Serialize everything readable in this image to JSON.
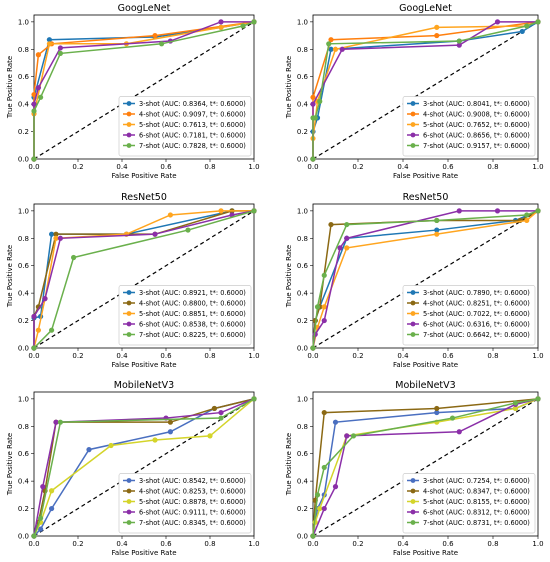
{
  "chart_data": [
    {
      "type": "line",
      "title": "GoogLeNet",
      "xlabel": "False Positive Rate",
      "ylabel": "True Positive Rate",
      "xlim": [
        0,
        1
      ],
      "ylim": [
        0,
        1.05
      ],
      "ticks": [
        "0.0",
        "0.2",
        "0.4",
        "0.6",
        "0.8",
        "1.0"
      ],
      "legend_position": "lower-right",
      "diagonal": true,
      "series": [
        {
          "name": "3-shot (AUC: 0.8364, t*: 0.6000)",
          "color": "#1f77b4",
          "x": [
            0,
            0,
            0.07,
            0.55,
            0.85,
            1.0
          ],
          "y": [
            0,
            0.45,
            0.87,
            0.89,
            0.96,
            1.0
          ]
        },
        {
          "name": "4-shot (AUC: 0.9097, t*: 0.6000)",
          "color": "#ff7f0e",
          "x": [
            0,
            0,
            0.02,
            0.08,
            0.55,
            1.0
          ],
          "y": [
            0,
            0.47,
            0.76,
            0.84,
            0.9,
            1.0
          ]
        },
        {
          "name": "5-shot (AUC: 0.7613, t*: 0.6000)",
          "color": "#ffa51f",
          "x": [
            0,
            0,
            0.07,
            0.42,
            0.85,
            1.0
          ],
          "y": [
            0,
            0.33,
            0.84,
            0.84,
            0.96,
            1.0
          ]
        },
        {
          "name": "6-shot (AUC: 0.7181, t*: 0.6000)",
          "color": "#8b2fa8",
          "x": [
            0,
            0,
            0.02,
            0.12,
            0.62,
            0.85,
            1.0
          ],
          "y": [
            0,
            0.4,
            0.52,
            0.81,
            0.86,
            1.0,
            1.0
          ]
        },
        {
          "name": "7-shot (AUC: 0.7828, t*: 0.6000)",
          "color": "#6ab04c",
          "x": [
            0,
            0,
            0.03,
            0.12,
            0.58,
            0.95,
            1.0
          ],
          "y": [
            0,
            0.35,
            0.45,
            0.77,
            0.84,
            0.97,
            1.0
          ]
        }
      ]
    },
    {
      "type": "line",
      "title": "GoogLeNet",
      "xlabel": "False Positive Rate",
      "ylabel": "True Positive Rate",
      "xlim": [
        0,
        1
      ],
      "ylim": [
        0,
        1.05
      ],
      "ticks": [
        "0.0",
        "0.2",
        "0.4",
        "0.6",
        "0.8",
        "1.0"
      ],
      "legend_position": "lower-right",
      "diagonal": true,
      "series": [
        {
          "name": "3-shot (AUC: 0.8041, t*: 0.6000)",
          "color": "#1f77b4",
          "x": [
            0,
            0,
            0.02,
            0.08,
            0.65,
            0.93,
            1.0
          ],
          "y": [
            0,
            0.2,
            0.3,
            0.8,
            0.86,
            0.93,
            1.0
          ]
        },
        {
          "name": "4-shot (AUC: 0.9008, t*: 0.6000)",
          "color": "#ff7f0e",
          "x": [
            0,
            0,
            0.08,
            0.55,
            1.0
          ],
          "y": [
            0,
            0.45,
            0.87,
            0.9,
            1.0
          ]
        },
        {
          "name": "5-shot (AUC: 0.7652, t*: 0.6000)",
          "color": "#ffa51f",
          "x": [
            0,
            0,
            0.02,
            0.1,
            0.55,
            0.95,
            1.0
          ],
          "y": [
            0,
            0.15,
            0.42,
            0.8,
            0.96,
            0.97,
            1.0
          ]
        },
        {
          "name": "6-shot (AUC: 0.8656, t*: 0.6000)",
          "color": "#8b2fa8",
          "x": [
            0,
            0,
            0.13,
            0.65,
            0.82,
            1.0
          ],
          "y": [
            0,
            0.4,
            0.8,
            0.83,
            1.0,
            1.0
          ]
        },
        {
          "name": "7-shot (AUC: 0.9157, t*: 0.6000)",
          "color": "#6ab04c",
          "x": [
            0,
            0,
            0.01,
            0.03,
            0.07,
            0.65,
            0.95,
            1.0
          ],
          "y": [
            0,
            0.3,
            0.3,
            0.42,
            0.84,
            0.86,
            0.97,
            1.0
          ]
        }
      ]
    },
    {
      "type": "line",
      "title": "ResNet50",
      "xlabel": "False Positive Rate",
      "ylabel": "True Positive Rate",
      "xlim": [
        0,
        1
      ],
      "ylim": [
        0,
        1.05
      ],
      "ticks": [
        "0.0",
        "0.2",
        "0.4",
        "0.6",
        "0.8",
        "1.0"
      ],
      "legend_position": "lower-right",
      "diagonal": true,
      "series": [
        {
          "name": "3-shot (AUC: 0.8921, t*: 0.6000)",
          "color": "#1f77b4",
          "x": [
            0,
            0,
            0.03,
            0.08,
            0.42,
            0.9,
            1.0
          ],
          "y": [
            0,
            0.22,
            0.23,
            0.83,
            0.83,
            1.0,
            1.0
          ]
        },
        {
          "name": "4-shot (AUC: 0.8800, t*: 0.6000)",
          "color": "#8b6914",
          "x": [
            0,
            0,
            0.02,
            0.1,
            0.55,
            0.9,
            1.0
          ],
          "y": [
            0,
            0.23,
            0.3,
            0.83,
            0.83,
            1.0,
            1.0
          ]
        },
        {
          "name": "5-shot (AUC: 0.8851, t*: 0.6000)",
          "color": "#ffa51f",
          "x": [
            0,
            0.02,
            0.05,
            0.1,
            0.42,
            0.62,
            0.85,
            1.0
          ],
          "y": [
            0,
            0.13,
            0.36,
            0.8,
            0.83,
            0.97,
            1.0,
            1.0
          ]
        },
        {
          "name": "6-shot (AUC: 0.8538, t*: 0.6000)",
          "color": "#8b2fa8",
          "x": [
            0,
            0,
            0.05,
            0.12,
            0.55,
            0.9,
            1.0
          ],
          "y": [
            0,
            0.23,
            0.36,
            0.8,
            0.83,
            0.97,
            1.0
          ]
        },
        {
          "name": "7-shot (AUC: 0.8225, t*: 0.6000)",
          "color": "#6ab04c",
          "x": [
            0,
            0.08,
            0.18,
            0.7,
            1.0
          ],
          "y": [
            0,
            0.13,
            0.66,
            0.86,
            1.0
          ]
        }
      ]
    },
    {
      "type": "line",
      "title": "ResNet50",
      "xlabel": "False Positive Rate",
      "ylabel": "True Positive Rate",
      "xlim": [
        0,
        1
      ],
      "ylim": [
        0,
        1.05
      ],
      "ticks": [
        "0.0",
        "0.2",
        "0.4",
        "0.6",
        "0.8",
        "1.0"
      ],
      "legend_position": "lower-right",
      "diagonal": true,
      "series": [
        {
          "name": "3-shot (AUC: 0.7890, t*: 0.6000)",
          "color": "#1f77b4",
          "x": [
            0,
            0.01,
            0.03,
            0.15,
            0.55,
            0.9,
            1.0
          ],
          "y": [
            0,
            0.2,
            0.3,
            0.8,
            0.86,
            0.93,
            1.0
          ]
        },
        {
          "name": "4-shot (AUC: 0.8251, t*: 0.6000)",
          "color": "#8b6914",
          "x": [
            0,
            0.01,
            0.03,
            0.08,
            0.55,
            0.92,
            1.0
          ],
          "y": [
            0,
            0.2,
            0.3,
            0.9,
            0.93,
            0.93,
            1.0
          ]
        },
        {
          "name": "5-shot (AUC: 0.7022, t*: 0.6000)",
          "color": "#ffa51f",
          "x": [
            0,
            0.02,
            0.05,
            0.15,
            0.55,
            0.95,
            1.0
          ],
          "y": [
            0,
            0.15,
            0.3,
            0.73,
            0.83,
            0.93,
            1.0
          ]
        },
        {
          "name": "6-shot (AUC: 0.6316, t*: 0.6000)",
          "color": "#8b2fa8",
          "x": [
            0,
            0.01,
            0.05,
            0.12,
            0.15,
            0.65,
            0.82,
            1.0
          ],
          "y": [
            0,
            0.1,
            0.2,
            0.73,
            0.8,
            1.0,
            1.0,
            1.0
          ]
        },
        {
          "name": "7-shot (AUC: 0.6642, t*: 0.6000)",
          "color": "#6ab04c",
          "x": [
            0,
            0.02,
            0.05,
            0.15,
            0.55,
            0.95,
            1.0
          ],
          "y": [
            0,
            0.3,
            0.53,
            0.9,
            0.93,
            0.97,
            1.0
          ]
        }
      ]
    },
    {
      "type": "line",
      "title": "MobileNetV3",
      "xlabel": "False Positive Rate",
      "ylabel": "True Positive Rate",
      "xlim": [
        0,
        1
      ],
      "ylim": [
        0,
        1.05
      ],
      "ticks": [
        "0.0",
        "0.2",
        "0.4",
        "0.6",
        "0.8",
        "1.0"
      ],
      "legend_position": "lower-right",
      "diagonal": true,
      "series": [
        {
          "name": "3-shot (AUC: 0.8542, t*: 0.6000)",
          "color": "#4a6fc0",
          "x": [
            0,
            0.03,
            0.08,
            0.25,
            0.62,
            0.82,
            1.0
          ],
          "y": [
            0,
            0.05,
            0.2,
            0.63,
            0.76,
            0.93,
            1.0
          ]
        },
        {
          "name": "4-shot (AUC: 0.8253, t*: 0.6000)",
          "color": "#8b6914",
          "x": [
            0,
            0.02,
            0.05,
            0.1,
            0.62,
            0.82,
            1.0
          ],
          "y": [
            0,
            0.1,
            0.33,
            0.83,
            0.83,
            0.93,
            1.0
          ]
        },
        {
          "name": "5-shot (AUC: 0.8878, t*: 0.6000)",
          "color": "#d4d42a",
          "x": [
            0,
            0.03,
            0.08,
            0.35,
            0.55,
            0.8,
            1.0
          ],
          "y": [
            0,
            0.1,
            0.33,
            0.66,
            0.7,
            0.73,
            1.0
          ]
        },
        {
          "name": "6-shot (AUC: 0.9111, t*: 0.6000)",
          "color": "#8b2fa8",
          "x": [
            0,
            0.04,
            0.1,
            0.6,
            0.85,
            1.0
          ],
          "y": [
            0,
            0.36,
            0.83,
            0.86,
            0.9,
            1.0
          ]
        },
        {
          "name": "7-shot (AUC: 0.8345, t*: 0.6000)",
          "color": "#6ab04c",
          "x": [
            0,
            0.03,
            0.12,
            0.85,
            1.0
          ],
          "y": [
            0,
            0.13,
            0.83,
            0.86,
            1.0
          ]
        }
      ]
    },
    {
      "type": "line",
      "title": "MobileNetV3",
      "xlabel": "False Positive Rate",
      "ylabel": "True Positive Rate",
      "xlim": [
        0,
        1
      ],
      "ylim": [
        0,
        1.05
      ],
      "ticks": [
        "0.0",
        "0.2",
        "0.4",
        "0.6",
        "0.8",
        "1.0"
      ],
      "legend_position": "lower-right",
      "diagonal": true,
      "series": [
        {
          "name": "3-shot (AUC: 0.7254, t*: 0.6000)",
          "color": "#4a6fc0",
          "x": [
            0,
            0.02,
            0.05,
            0.1,
            0.55,
            0.9,
            1.0
          ],
          "y": [
            0,
            0.2,
            0.3,
            0.83,
            0.9,
            0.93,
            1.0
          ]
        },
        {
          "name": "4-shot (AUC: 0.8347, t*: 0.6000)",
          "color": "#8b6914",
          "x": [
            0,
            0.01,
            0.05,
            0.55,
            1.0
          ],
          "y": [
            0,
            0.26,
            0.9,
            0.93,
            1.0
          ]
        },
        {
          "name": "5-shot (AUC: 0.8155, t*: 0.6000)",
          "color": "#d4d42a",
          "x": [
            0,
            0.01,
            0.03,
            0.15,
            0.55,
            0.9,
            1.0
          ],
          "y": [
            0,
            0.1,
            0.2,
            0.73,
            0.83,
            0.93,
            1.0
          ]
        },
        {
          "name": "6-shot (AUC: 0.8312, t*: 0.6000)",
          "color": "#8b2fa8",
          "x": [
            0,
            0.05,
            0.1,
            0.15,
            0.65,
            0.9,
            1.0
          ],
          "y": [
            0,
            0.2,
            0.36,
            0.73,
            0.76,
            0.96,
            1.0
          ]
        },
        {
          "name": "7-shot (AUC: 0.8731, t*: 0.6000)",
          "color": "#6ab04c",
          "x": [
            0,
            0.02,
            0.05,
            0.18,
            0.62,
            0.9,
            1.0
          ],
          "y": [
            0,
            0.3,
            0.5,
            0.73,
            0.86,
            0.97,
            1.0
          ]
        }
      ]
    }
  ]
}
